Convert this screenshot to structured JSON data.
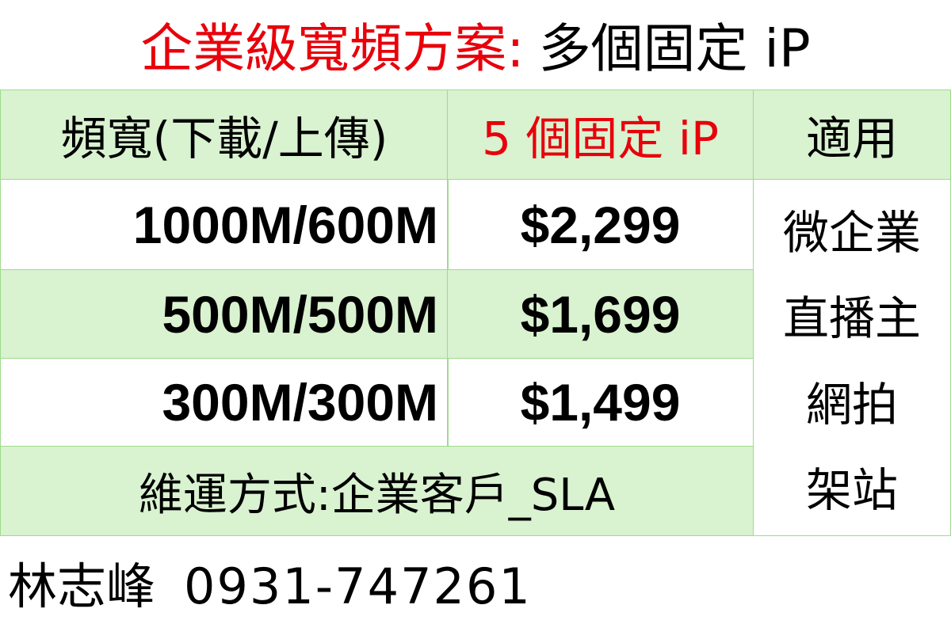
{
  "title": {
    "red": "企業級寬頻方案:",
    "black": "多個固定 iP"
  },
  "table": {
    "headers": [
      "頻寬(下載/上傳)",
      "5 個固定 iP",
      "適用"
    ],
    "rows": [
      {
        "bandwidth": "1000M/600M",
        "price": "$2,299"
      },
      {
        "bandwidth": "500M/500M",
        "price": "$1,699"
      },
      {
        "bandwidth": "300M/300M",
        "price": "$1,499"
      }
    ],
    "suitable_for": [
      "微企業",
      "直播主",
      "網拍",
      "架站"
    ],
    "maintenance": "維運方式:企業客戶_SLA"
  },
  "contact": {
    "name": "林志峰",
    "phone": "0931-747261"
  },
  "colors": {
    "title_red": "#e8000b",
    "header_red": "#e8000b",
    "row_green": "#d9f2d0",
    "grid": "#9ddc8c"
  }
}
